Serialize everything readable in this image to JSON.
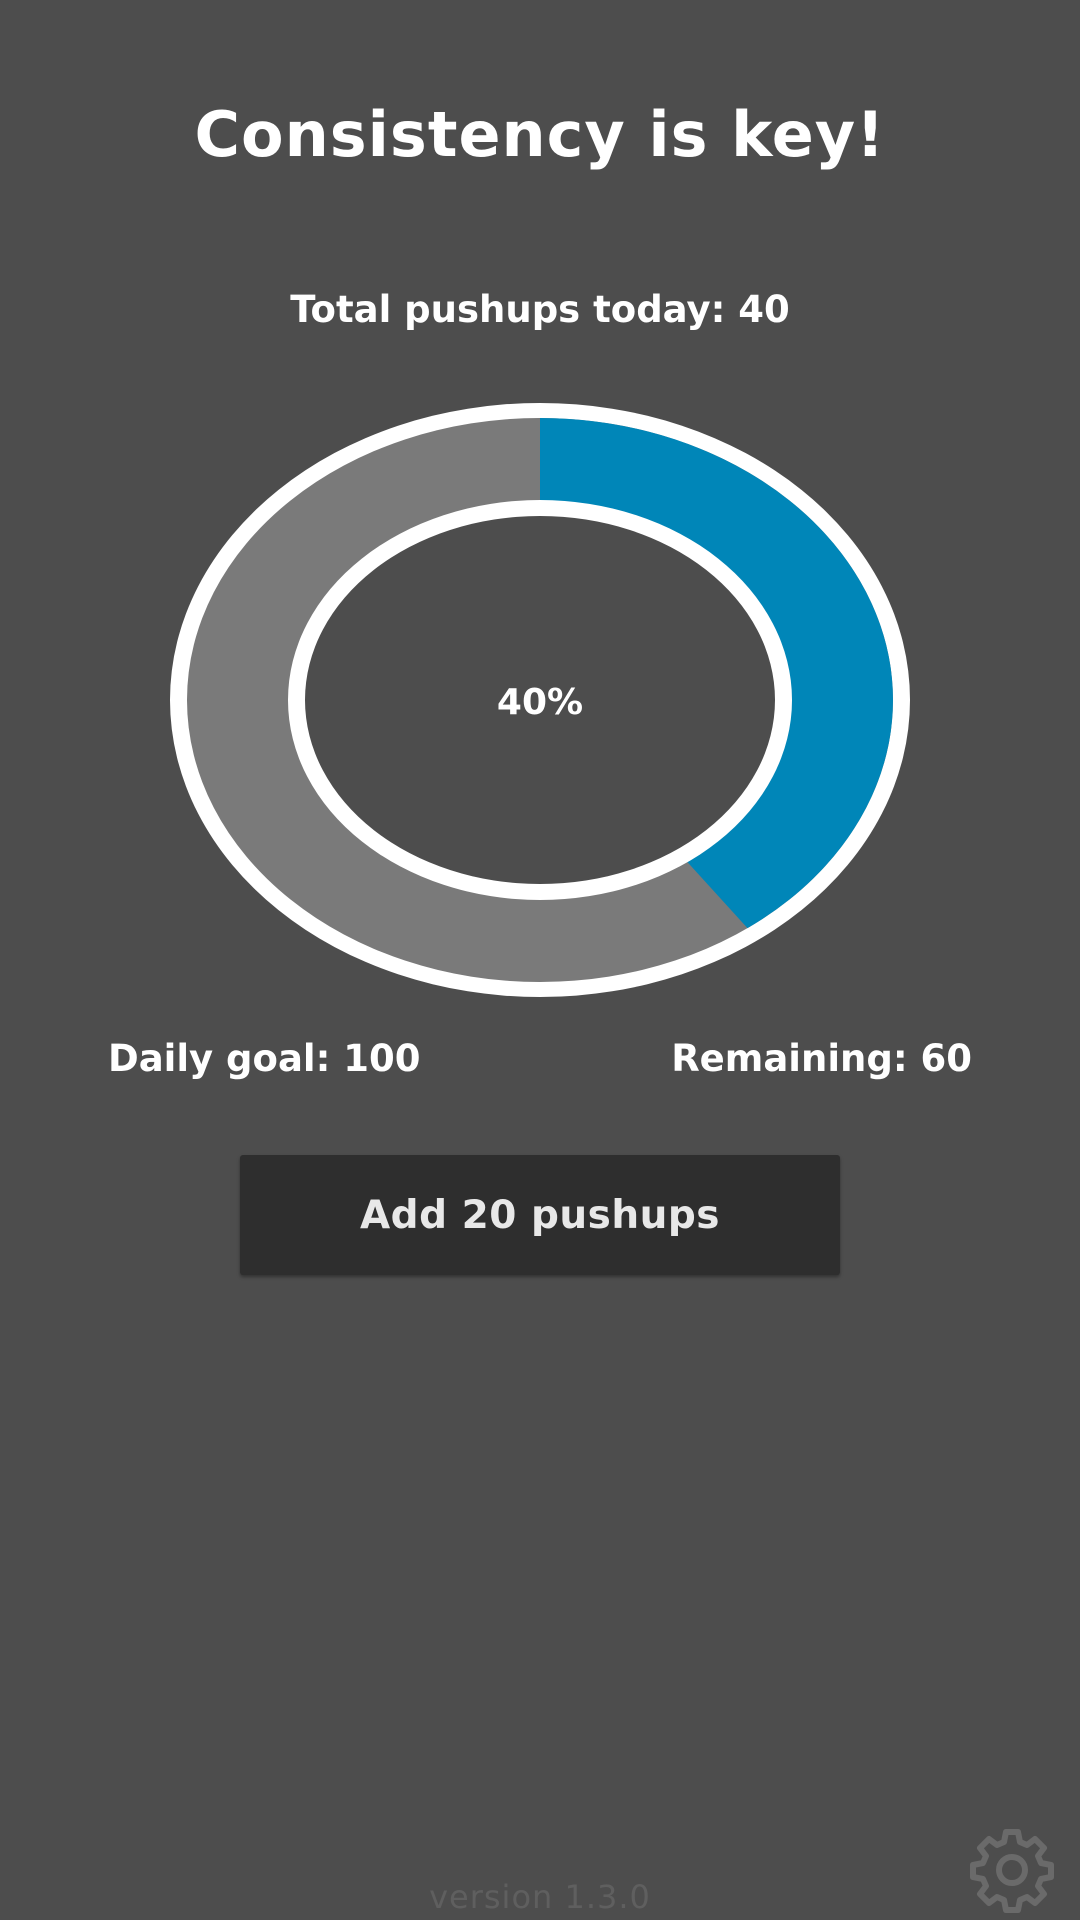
{
  "header": {
    "title": "Consistency is key!"
  },
  "stats": {
    "total_text": "Total pushups today: 40",
    "percent_text": "40%",
    "goal_text": "Daily goal: 100",
    "remaining_text": "Remaining: 60"
  },
  "progress": {
    "fraction": 0.4,
    "fill_color": "#0086b8",
    "track_color": "#7a7a7a",
    "border_color": "#ffffff"
  },
  "actions": {
    "add_label": "Add 20 pushups"
  },
  "footer": {
    "version": "version 1.3.0",
    "settings_icon": "gear-icon"
  }
}
